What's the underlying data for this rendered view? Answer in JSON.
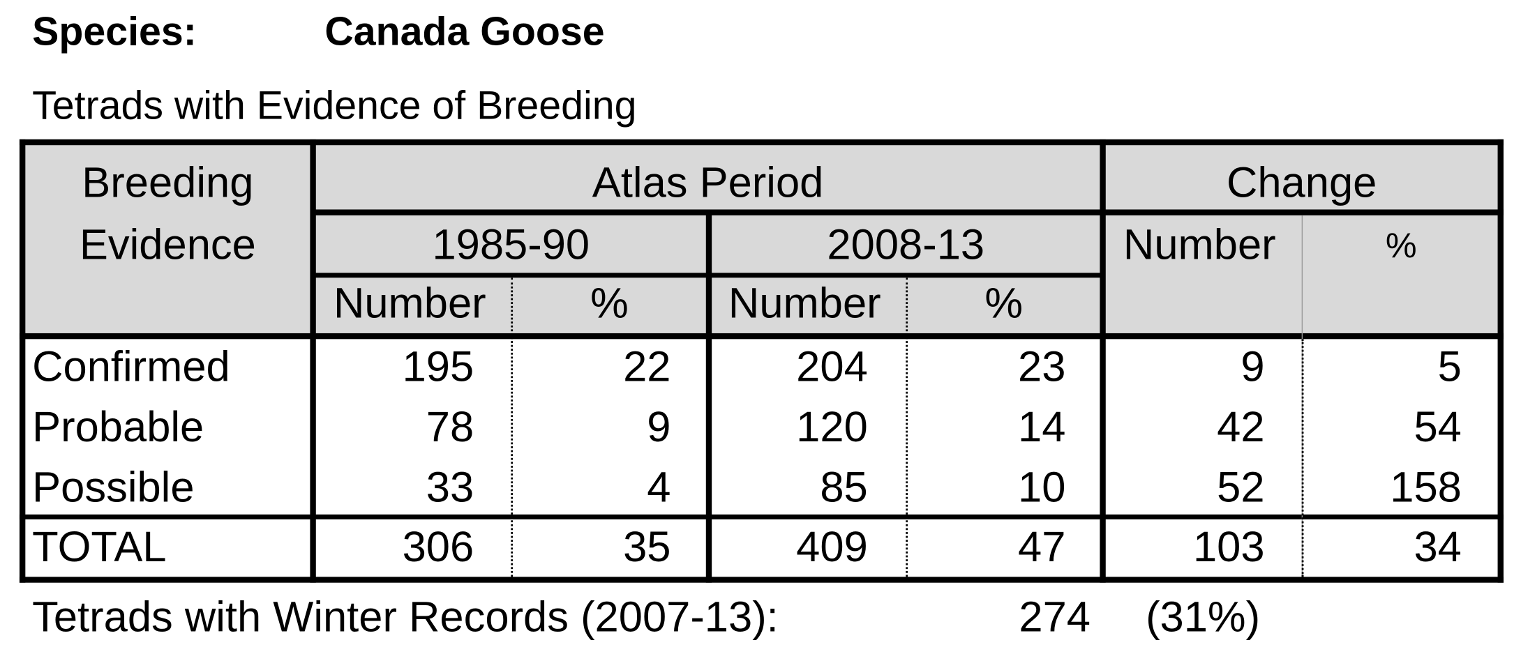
{
  "species_label": "Species:",
  "species_name": "Canada Goose",
  "subtitle": "Tetrads with Evidence of Breeding",
  "table": {
    "header": {
      "breeding_evidence_1": "Breeding",
      "breeding_evidence_2": "Evidence",
      "atlas_period": "Atlas Period",
      "change": "Change",
      "period1": "1985-90",
      "period2": "2008-13",
      "number": "Number",
      "percent": "%"
    },
    "rows": [
      {
        "label": "Confirmed",
        "n1": "195",
        "p1": "22",
        "n2": "204",
        "p2": "23",
        "cn": "9",
        "cp": "5"
      },
      {
        "label": "Probable",
        "n1": "78",
        "p1": "9",
        "n2": "120",
        "p2": "14",
        "cn": "42",
        "cp": "54"
      },
      {
        "label": "Possible",
        "n1": "33",
        "p1": "4",
        "n2": "85",
        "p2": "10",
        "cn": "52",
        "cp": "158"
      }
    ],
    "total": {
      "label": "TOTAL",
      "n1": "306",
      "p1": "35",
      "n2": "409",
      "p2": "47",
      "cn": "103",
      "cp": "34"
    }
  },
  "winter": {
    "label": "Tetrads with Winter Records (2007-13):",
    "count": "274",
    "percent": "(31%)"
  }
}
